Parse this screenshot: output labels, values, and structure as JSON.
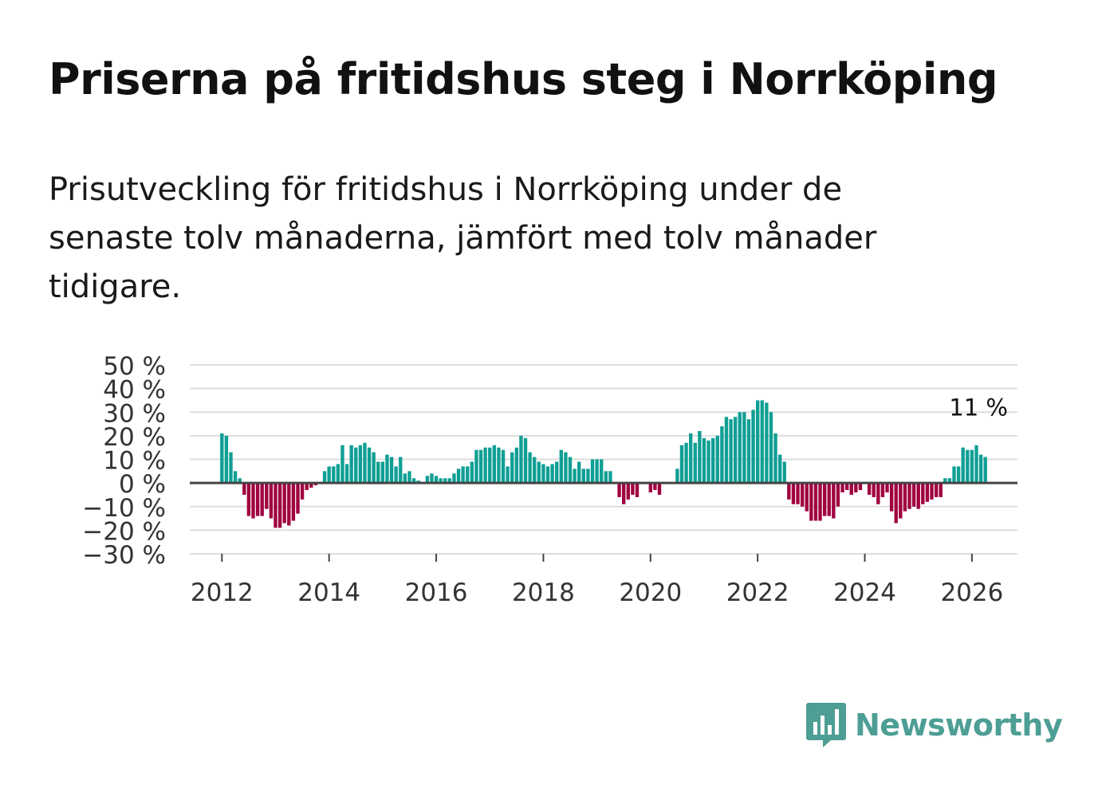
{
  "title": "Priserna på fritidshus steg i Norrköping",
  "subtitle": "Prisutveckling för fritidshus i Norrköping under de senaste tolv månaderna, jämfört med tolv månader tidigare.",
  "brand": {
    "name": "Newsworthy",
    "color": "#4d9e95"
  },
  "colors": {
    "positive": "#0f9f94",
    "negative": "#a0003f",
    "grid": "#dddddd",
    "zero": "#444444",
    "tick": "#333333"
  },
  "chart_data": {
    "type": "bar",
    "title": "Priserna på fritidshus steg i Norrköping",
    "xlabel": "",
    "ylabel": "",
    "ylim": [
      -30,
      50
    ],
    "xlim": [
      2011.4,
      2026.85
    ],
    "yticks": [
      50,
      40,
      30,
      20,
      10,
      0,
      -10,
      -20,
      -30
    ],
    "ytick_labels": [
      "50 %",
      "40 %",
      "30 %",
      "20 %",
      "10 %",
      "0 %",
      "−10 %",
      "−20 %",
      "−30 %"
    ],
    "xticks": [
      2012,
      2014,
      2016,
      2018,
      2020,
      2022,
      2024,
      2026
    ],
    "xtick_labels": [
      "2012",
      "2014",
      "2016",
      "2018",
      "2020",
      "2022",
      "2024",
      "2026"
    ],
    "start": {
      "year": 2012,
      "month": 1
    },
    "frequency": "monthly",
    "values": [
      21,
      20,
      13,
      5,
      2,
      -5,
      -14,
      -15,
      -14,
      -14,
      -11,
      -15,
      -19,
      -19,
      -17,
      -18,
      -16,
      -13,
      -7,
      -3,
      -2,
      -1,
      0,
      5,
      7,
      7,
      8,
      16,
      8,
      16,
      15,
      16,
      17,
      15,
      13,
      9,
      9,
      12,
      11,
      7,
      11,
      4,
      5,
      2,
      1,
      0,
      3,
      4,
      3,
      2,
      2,
      2,
      4,
      6,
      7,
      7,
      9,
      14,
      14,
      15,
      15,
      16,
      15,
      14,
      7,
      13,
      15,
      20,
      19,
      13,
      11,
      9,
      8,
      7,
      8,
      9,
      14,
      13,
      11,
      6,
      9,
      6,
      6,
      10,
      10,
      10,
      5,
      5,
      0,
      -6,
      -9,
      -7,
      -5,
      -6,
      0,
      0,
      -4,
      -3,
      -5,
      0,
      0,
      0,
      6,
      16,
      17,
      21,
      17,
      22,
      19,
      18,
      19,
      20,
      24,
      28,
      27,
      28,
      30,
      30,
      27,
      31,
      35,
      35,
      34,
      30,
      21,
      12,
      9,
      -7,
      -9,
      -9,
      -10,
      -12,
      -16,
      -16,
      -16,
      -14,
      -14,
      -15,
      -10,
      -4,
      -3,
      -5,
      -4,
      -3,
      0,
      -5,
      -6,
      -9,
      -6,
      -4,
      -12,
      -17,
      -15,
      -12,
      -11,
      -10,
      -11,
      -9,
      -8,
      -7,
      -6,
      -6,
      2,
      2,
      7,
      7,
      15,
      14,
      14,
      16,
      12,
      11
    ],
    "annotations": [
      {
        "text": "11 %",
        "target": "last"
      }
    ]
  }
}
